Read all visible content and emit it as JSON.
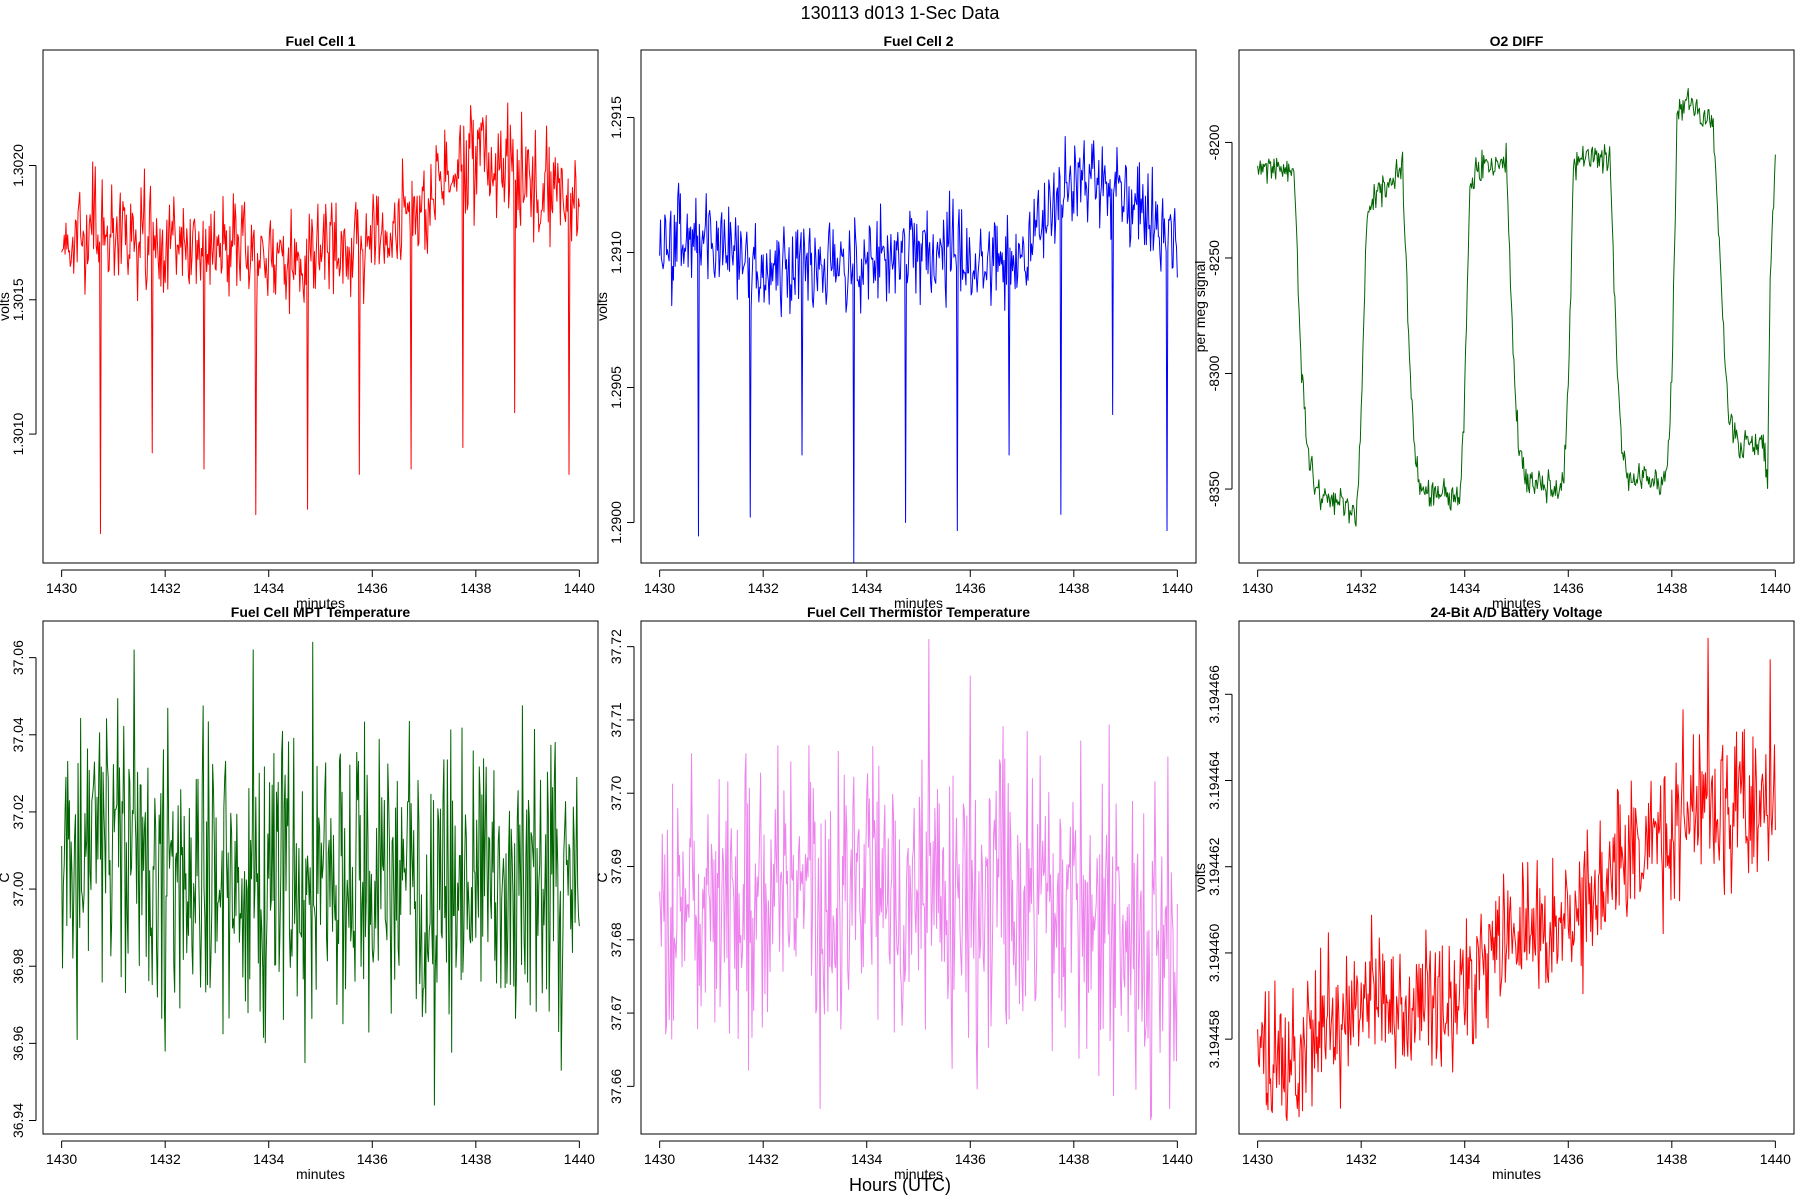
{
  "figure": {
    "title": "130113   d013   1-Sec Data",
    "footer": "Hours (UTC)"
  },
  "chart_data": [
    {
      "type": "line",
      "title": "Fuel Cell 1",
      "xlabel": "minutes",
      "ylabel": "volts",
      "color": "#ff0000",
      "xlim": [
        1429.64,
        1440.36
      ],
      "ylim": [
        1.30052,
        1.30243
      ],
      "xticks": [
        1430,
        1432,
        1434,
        1436,
        1438,
        1440
      ],
      "yticks": [
        1.301,
        1.3015,
        1.302
      ],
      "yticklabels": [
        "1.3010",
        "1.3015",
        "1.3020"
      ],
      "series": [
        {
          "name": "Fuel Cell 1",
          "base": [
            [
              1430,
              1.3017
            ],
            [
              1431,
              1.30177
            ],
            [
              1432,
              1.30167
            ],
            [
              1433,
              1.3017
            ],
            [
              1434,
              1.30167
            ],
            [
              1435,
              1.3017
            ],
            [
              1436,
              1.30168
            ],
            [
              1437,
              1.30182
            ],
            [
              1437.5,
              1.30198
            ],
            [
              1438,
              1.30203
            ],
            [
              1439,
              1.30195
            ],
            [
              1440,
              1.3018
            ]
          ],
          "noise": 0.00018,
          "spikes": [
            [
              1430.75,
              1.30063
            ],
            [
              1431.75,
              1.30093
            ],
            [
              1432.75,
              1.30087
            ],
            [
              1433.75,
              1.3007
            ],
            [
              1434.75,
              1.30072
            ],
            [
              1435.75,
              1.30085
            ],
            [
              1436.75,
              1.30087
            ],
            [
              1437.75,
              1.30095
            ],
            [
              1438.75,
              1.30108
            ],
            [
              1439.8,
              1.30085
            ]
          ]
        }
      ]
    },
    {
      "type": "line",
      "title": "Fuel Cell 2",
      "xlabel": "minutes",
      "ylabel": "volts",
      "color": "#0000ff",
      "xlim": [
        1429.64,
        1440.36
      ],
      "ylim": [
        1.28985,
        1.29175
      ],
      "xticks": [
        1430,
        1432,
        1434,
        1436,
        1438,
        1440
      ],
      "yticks": [
        1.29,
        1.2905,
        1.291,
        1.2915
      ],
      "yticklabels": [
        "1.2900",
        "1.2905",
        "1.2910",
        "1.2915"
      ],
      "series": [
        {
          "name": "Fuel Cell 2",
          "base": [
            [
              1430,
              1.291
            ],
            [
              1431,
              1.29105
            ],
            [
              1432,
              1.29093
            ],
            [
              1433,
              1.29095
            ],
            [
              1434,
              1.29095
            ],
            [
              1435,
              1.291
            ],
            [
              1436,
              1.29098
            ],
            [
              1437,
              1.291
            ],
            [
              1437.7,
              1.2912
            ],
            [
              1438.5,
              1.2913
            ],
            [
              1439,
              1.29118
            ],
            [
              1440,
              1.29105
            ]
          ],
          "noise": 0.00016,
          "spikes": [
            [
              1430.75,
              1.28995
            ],
            [
              1431.75,
              1.29002
            ],
            [
              1432.75,
              1.29025
            ],
            [
              1433.75,
              1.28985
            ],
            [
              1434.75,
              1.29
            ],
            [
              1435.75,
              1.28997
            ],
            [
              1436.75,
              1.29025
            ],
            [
              1437.75,
              1.29003
            ],
            [
              1438.75,
              1.2904
            ],
            [
              1439.8,
              1.28997
            ]
          ]
        }
      ]
    },
    {
      "type": "line",
      "title": "O2 DIFF",
      "xlabel": "minutes",
      "ylabel": "per meg signal",
      "color": "#006400",
      "xlim": [
        1429.64,
        1440.36
      ],
      "ylim": [
        -8382,
        -8160
      ],
      "xticks": [
        1430,
        1432,
        1434,
        1436,
        1438,
        1440
      ],
      "yticks": [
        -8350,
        -8300,
        -8250,
        -8200
      ],
      "yticklabels": [
        "-8350",
        "-8300",
        "-8250",
        "-8200"
      ],
      "series": [
        {
          "name": "O2 DIFF",
          "base": [
            [
              1430,
              -8210
            ],
            [
              1430.7,
              -8212
            ],
            [
              1430.85,
              -8300
            ],
            [
              1431.0,
              -8340
            ],
            [
              1431.15,
              -8352
            ],
            [
              1431.9,
              -8360
            ],
            [
              1432.0,
              -8320
            ],
            [
              1432.1,
              -8235
            ],
            [
              1432.2,
              -8225
            ],
            [
              1432.8,
              -8212
            ],
            [
              1432.95,
              -8300
            ],
            [
              1433.05,
              -8340
            ],
            [
              1433.2,
              -8350
            ],
            [
              1433.9,
              -8355
            ],
            [
              1434.0,
              -8310
            ],
            [
              1434.1,
              -8220
            ],
            [
              1434.25,
              -8212
            ],
            [
              1434.8,
              -8208
            ],
            [
              1434.95,
              -8300
            ],
            [
              1435.05,
              -8335
            ],
            [
              1435.2,
              -8345
            ],
            [
              1435.9,
              -8350
            ],
            [
              1436.0,
              -8310
            ],
            [
              1436.1,
              -8215
            ],
            [
              1436.25,
              -8208
            ],
            [
              1436.8,
              -8206
            ],
            [
              1436.95,
              -8300
            ],
            [
              1437.05,
              -8335
            ],
            [
              1437.2,
              -8345
            ],
            [
              1437.9,
              -8345
            ],
            [
              1438.0,
              -8300
            ],
            [
              1438.1,
              -8190
            ],
            [
              1438.3,
              -8182
            ],
            [
              1438.8,
              -8190
            ],
            [
              1438.95,
              -8260
            ],
            [
              1439.1,
              -8318
            ],
            [
              1439.3,
              -8330
            ],
            [
              1439.75,
              -8330
            ],
            [
              1439.85,
              -8345
            ],
            [
              1439.9,
              -8260
            ],
            [
              1440,
              -8205
            ]
          ],
          "noise": 6,
          "spikes": []
        }
      ]
    },
    {
      "type": "line",
      "title": "Fuel Cell MPT Temperature",
      "xlabel": "minutes",
      "ylabel": "C",
      "color": "#006400",
      "xlim": [
        1429.64,
        1440.36
      ],
      "ylim": [
        36.9365,
        37.0695
      ],
      "xticks": [
        1430,
        1432,
        1434,
        1436,
        1438,
        1440
      ],
      "yticks": [
        36.94,
        36.96,
        36.98,
        37.0,
        37.02,
        37.04,
        37.06
      ],
      "yticklabels": [
        "36.94",
        "36.96",
        "36.98",
        "37.00",
        "37.02",
        "37.04",
        "37.06"
      ],
      "series": [
        {
          "name": "Fuel Cell MPT Temperature",
          "base": [
            [
              1430,
              37.01
            ],
            [
              1431,
              37.012
            ],
            [
              1432,
              37.004
            ],
            [
              1433,
              37.003
            ],
            [
              1434,
              37.004
            ],
            [
              1435,
              37.003
            ],
            [
              1436,
              37.002
            ],
            [
              1437,
              37.0
            ],
            [
              1438,
              37.004
            ],
            [
              1439,
              37.002
            ],
            [
              1440,
              37.002
            ]
          ],
          "noise": 0.034,
          "spikes": [
            [
              1434.85,
              37.064
            ],
            [
              1431.4,
              37.062
            ],
            [
              1433.7,
              37.062
            ],
            [
              1437.2,
              36.944
            ],
            [
              1432.0,
              36.958
            ],
            [
              1434.7,
              36.955
            ]
          ]
        }
      ]
    },
    {
      "type": "line",
      "title": "Fuel Cell Thermistor Temperature",
      "xlabel": "minutes",
      "ylabel": "C",
      "color": "#ee82ee",
      "xlim": [
        1429.64,
        1440.36
      ],
      "ylim": [
        37.6535,
        37.7235
      ],
      "xticks": [
        1430,
        1432,
        1434,
        1436,
        1438,
        1440
      ],
      "yticks": [
        37.66,
        37.67,
        37.68,
        37.69,
        37.7,
        37.71,
        37.72
      ],
      "yticklabels": [
        "37.66",
        "37.67",
        "37.68",
        "37.69",
        "37.70",
        "37.71",
        "37.72"
      ],
      "series": [
        {
          "name": "Fuel Cell Thermistor Temperature",
          "base": [
            [
              1430,
              37.685
            ],
            [
              1431,
              37.686
            ],
            [
              1432,
              37.686
            ],
            [
              1433,
              37.686
            ],
            [
              1434,
              37.686
            ],
            [
              1435,
              37.686
            ],
            [
              1436,
              37.686
            ],
            [
              1437,
              37.685
            ],
            [
              1438,
              37.684
            ],
            [
              1439,
              37.682
            ],
            [
              1440,
              37.68
            ]
          ],
          "noise": 0.018,
          "spikes": [
            [
              1435.2,
              37.721
            ],
            [
              1436.0,
              37.716
            ],
            [
              1433.1,
              37.657
            ],
            [
              1439.5,
              37.656
            ],
            [
              1439.85,
              37.657
            ]
          ]
        }
      ]
    },
    {
      "type": "line",
      "title": "24-Bit A/D Battery Voltage",
      "xlabel": "minutes",
      "ylabel": "volts",
      "color": "#ff0000",
      "xlim": [
        1429.64,
        1440.36
      ],
      "ylim": [
        3.1944558,
        3.1944677
      ],
      "xticks": [
        1430,
        1432,
        1434,
        1436,
        1438,
        1440
      ],
      "yticks": [
        3.194458,
        3.19446,
        3.194462,
        3.194464,
        3.194466
      ],
      "yticklabels": [
        "3.194458",
        "3.194460",
        "3.194462",
        "3.194464",
        "3.194466"
      ],
      "series": [
        {
          "name": "24-Bit A/D Battery Voltage",
          "base": [
            [
              1430,
              3.194458
            ],
            [
              1430.8,
              3.1944577
            ],
            [
              1431.5,
              3.1944585
            ],
            [
              1432.5,
              3.1944589
            ],
            [
              1433.5,
              3.1944588
            ],
            [
              1434.3,
              3.194459
            ],
            [
              1434.5,
              3.1944601
            ],
            [
              1435.5,
              3.1944604
            ],
            [
              1436.5,
              3.1944614
            ],
            [
              1437.0,
              3.1944624
            ],
            [
              1438.0,
              3.1944628
            ],
            [
              1438.5,
              3.1944635
            ],
            [
              1439.0,
              3.1944632
            ],
            [
              1440,
              3.194464
            ]
          ],
          "noise": 1.6e-06,
          "spikes": [
            [
              1438.7,
              3.1944673
            ],
            [
              1439.9,
              3.1944668
            ],
            [
              1430.8,
              3.1944562
            ]
          ]
        }
      ]
    }
  ]
}
